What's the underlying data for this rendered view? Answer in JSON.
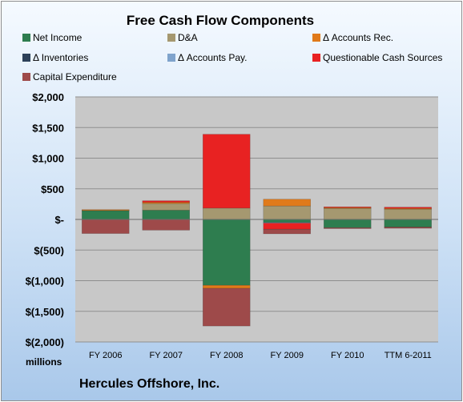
{
  "chart_data": {
    "type": "bar",
    "stacked": true,
    "title": "Free Cash Flow Components",
    "categories": [
      "FY 2006",
      "FY 2007",
      "FY 2008",
      "FY 2009",
      "FY 2010",
      "TTM 6-2011"
    ],
    "ylim": [
      -2000,
      2000
    ],
    "yticks": [
      -2000,
      -1500,
      -1000,
      -500,
      0,
      500,
      1000,
      1500,
      2000
    ],
    "ytick_labels": [
      "$(2,000)",
      "$(1,500)",
      "$(1,000)",
      "$(500)",
      "$-",
      "$500",
      "$1,000",
      "$1,500",
      "$2,000"
    ],
    "units_label": "millions",
    "grid": true,
    "legend_position": "top",
    "series": [
      {
        "name": "Net Income",
        "color": "#2e7d4f",
        "values": [
          145,
          150,
          -1075,
          -50,
          -135,
          -125
        ]
      },
      {
        "name": "D&A",
        "color": "#a59870",
        "values": [
          10,
          110,
          185,
          220,
          180,
          170
        ]
      },
      {
        "name": "Δ Accounts Rec.",
        "color": "#e07a1a",
        "values": [
          5,
          20,
          -50,
          110,
          15,
          10
        ]
      },
      {
        "name": "Δ Inventories",
        "color": "#2d4159",
        "values": [
          0,
          0,
          0,
          0,
          0,
          0
        ]
      },
      {
        "name": "Δ Accounts Pay.",
        "color": "#7fa3cc",
        "values": [
          0,
          0,
          0,
          -10,
          0,
          0
        ]
      },
      {
        "name": "Questionable Cash Sources",
        "color": "#e82222",
        "values": [
          0,
          25,
          1205,
          -100,
          10,
          20
        ]
      },
      {
        "name": "Capital Expenditure",
        "color": "#9e4a4a",
        "values": [
          -230,
          -175,
          -615,
          -75,
          -15,
          -20
        ]
      }
    ]
  },
  "footer": {
    "company": "Hercules Offshore, Inc."
  }
}
